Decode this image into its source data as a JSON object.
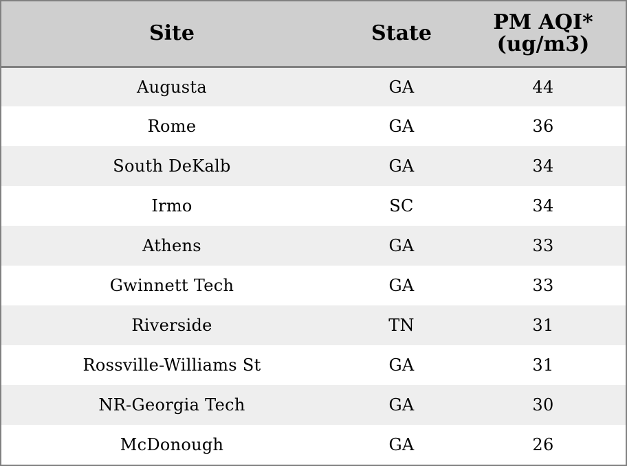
{
  "table": {
    "headers": {
      "site": "Site",
      "state": "State",
      "pm_line1": "PM AQI*",
      "pm_line2": "(ug/m3)"
    },
    "rows": [
      {
        "site": "Augusta",
        "state": "GA",
        "pm": "44"
      },
      {
        "site": "Rome",
        "state": "GA",
        "pm": "36"
      },
      {
        "site": "South DeKalb",
        "state": "GA",
        "pm": "34"
      },
      {
        "site": "Irmo",
        "state": "SC",
        "pm": "34"
      },
      {
        "site": "Athens",
        "state": "GA",
        "pm": "33"
      },
      {
        "site": "Gwinnett Tech",
        "state": "GA",
        "pm": "33"
      },
      {
        "site": "Riverside",
        "state": "TN",
        "pm": "31"
      },
      {
        "site": "Rossville-Williams St",
        "state": "GA",
        "pm": "31"
      },
      {
        "site": "NR-Georgia Tech",
        "state": "GA",
        "pm": "30"
      },
      {
        "site": "McDonough",
        "state": "GA",
        "pm": "26"
      }
    ]
  },
  "colors": {
    "header_bg": "#cfcfcf",
    "stripe_bg": "#eeeeee",
    "border": "#808080"
  }
}
